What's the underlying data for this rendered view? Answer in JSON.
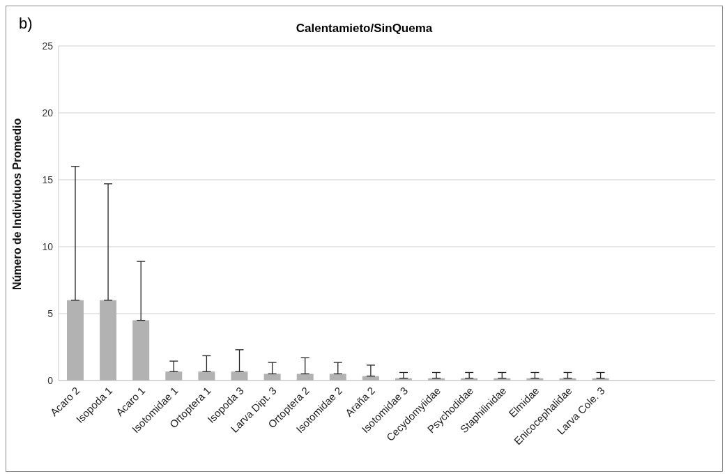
{
  "chart_data": {
    "type": "bar",
    "title": "Calentamieto/SinQuema",
    "ylabel": "Número de Individuos Promedio",
    "annotations": [
      "b)"
    ],
    "categories": [
      "Acaro 2",
      "Isopoda 1",
      "Acaro 1",
      "Isotomidae 1",
      "Ortoptera 1",
      "Isopoda 3",
      "Larva Dipt. 3",
      "Ortoptera 2",
      "Isotomidae 2",
      "Araña 2",
      "Isotomidae 3",
      "Cecydomyiidae",
      "Psychodidae",
      "Staphilinidae",
      "Elmidae",
      "Enicocephalidae",
      "Larva Cole. 3",
      null,
      null,
      null
    ],
    "values": [
      6,
      6,
      4.5,
      0.67,
      0.67,
      0.67,
      0.5,
      0.5,
      0.5,
      0.33,
      0.17,
      0.17,
      0.17,
      0.17,
      0.17,
      0.17,
      0.17,
      null,
      null,
      null
    ],
    "errors": [
      [
        6,
        16
      ],
      [
        6,
        14.7
      ],
      [
        4.5,
        8.9
      ],
      [
        0.67,
        1.45
      ],
      [
        0.67,
        1.85
      ],
      [
        0.67,
        2.3
      ],
      [
        0.5,
        1.35
      ],
      [
        0.5,
        1.7
      ],
      [
        0.5,
        1.35
      ],
      [
        0.33,
        1.15
      ],
      [
        0.17,
        0.6
      ],
      [
        0.17,
        0.6
      ],
      [
        0.17,
        0.6
      ],
      [
        0.17,
        0.6
      ],
      [
        0.17,
        0.6
      ],
      [
        0.17,
        0.6
      ],
      [
        0.17,
        0.6
      ],
      null,
      null,
      null
    ],
    "color": "#b2b2b2",
    "ylim": [
      0,
      25
    ],
    "yticks": [
      0,
      5,
      10,
      15,
      20,
      25
    ],
    "grid": "y"
  }
}
